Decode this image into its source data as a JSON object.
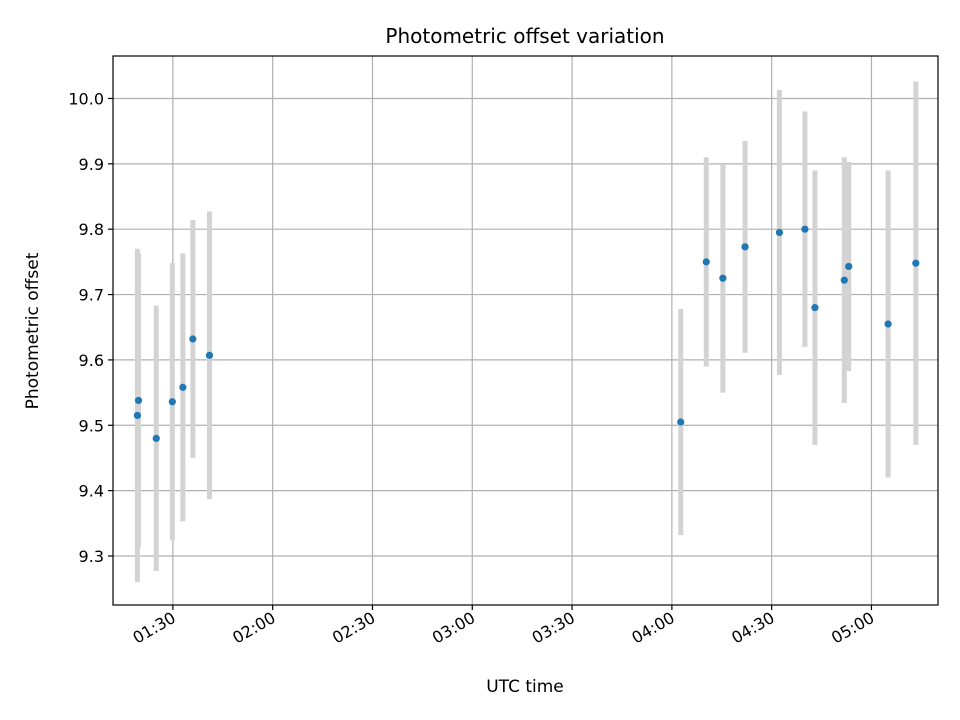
{
  "chart_data": {
    "type": "scatter",
    "title": "Photometric offset variation",
    "xlabel": "UTC time",
    "ylabel": "Photometric offset",
    "x_axis_kind": "time",
    "xlim": [
      "01:12",
      "05:20"
    ],
    "ylim": [
      9.225,
      10.065
    ],
    "x_ticks": [
      "01:30",
      "02:00",
      "02:30",
      "03:00",
      "03:30",
      "04:00",
      "04:30",
      "05:00"
    ],
    "y_ticks": [
      9.3,
      9.4,
      9.5,
      9.6,
      9.7,
      9.8,
      9.9,
      10.0
    ],
    "grid": true,
    "legend": "none",
    "colors": {
      "point": "#1f77b4",
      "errorbar": "#d3d3d3",
      "grid": "#b0b0b0"
    },
    "points": [
      {
        "x": "01:19:20",
        "y": 9.515,
        "err": 0.255
      },
      {
        "x": "01:19:40",
        "y": 9.538,
        "err": 0.225
      },
      {
        "x": "01:25:00",
        "y": 9.48,
        "err": 0.203
      },
      {
        "x": "01:29:50",
        "y": 9.536,
        "err": 0.212
      },
      {
        "x": "01:33:00",
        "y": 9.558,
        "err": 0.205
      },
      {
        "x": "01:36:00",
        "y": 9.632,
        "err": 0.182
      },
      {
        "x": "01:41:00",
        "y": 9.607,
        "err": 0.22
      },
      {
        "x": "04:02:40",
        "y": 9.505,
        "err": 0.173
      },
      {
        "x": "04:10:20",
        "y": 9.75,
        "err": 0.16
      },
      {
        "x": "04:15:20",
        "y": 9.725,
        "err": 0.175
      },
      {
        "x": "04:22:00",
        "y": 9.773,
        "err": 0.162
      },
      {
        "x": "04:32:20",
        "y": 9.795,
        "err": 0.218
      },
      {
        "x": "04:40:00",
        "y": 9.8,
        "err": 0.18
      },
      {
        "x": "04:43:00",
        "y": 9.68,
        "err": 0.21
      },
      {
        "x": "04:51:50",
        "y": 9.722,
        "err": 0.188
      },
      {
        "x": "04:53:10",
        "y": 9.743,
        "err": 0.16
      },
      {
        "x": "05:05:00",
        "y": 9.655,
        "err": 0.235
      },
      {
        "x": "05:13:20",
        "y": 9.748,
        "err": 0.278
      }
    ]
  }
}
